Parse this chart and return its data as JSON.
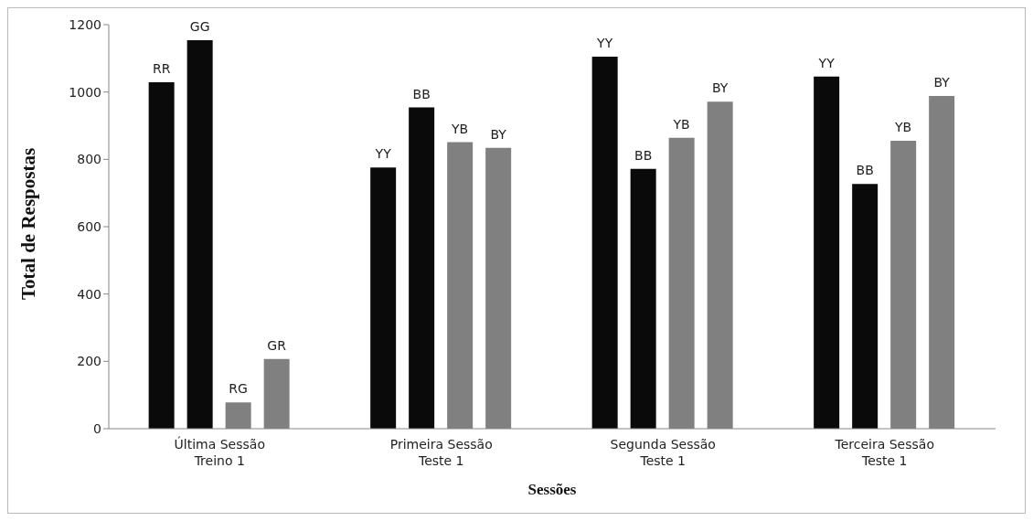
{
  "chart_data": {
    "type": "bar",
    "xlabel": "Sessões",
    "ylabel": "Total de Respostas",
    "categories": [
      "Última Sessão\nTreino 1",
      "Primeira Sessão\nTeste 1",
      "Segunda Sessão\nTeste 1",
      "Terceira Sessão\nTeste 1"
    ],
    "series": [
      {
        "color": "#0a0a0a",
        "values": [
          1029,
          776,
          1105,
          1046
        ],
        "value_labels": [
          "RR",
          "YY",
          "YY",
          "YY"
        ]
      },
      {
        "color": "#0a0a0a",
        "values": [
          1154,
          954,
          772,
          727
        ],
        "value_labels": [
          "GG",
          "BB",
          "BB",
          "BB"
        ]
      },
      {
        "color": "#808080",
        "values": [
          78,
          851,
          864,
          855
        ],
        "value_labels": [
          "RG",
          "YB",
          "YB",
          "YB"
        ]
      },
      {
        "color": "#808080",
        "values": [
          207,
          834,
          971,
          988
        ],
        "value_labels": [
          "GR",
          "BY",
          "BY",
          "BY"
        ]
      }
    ],
    "ylim": [
      0,
      1200
    ],
    "yticks": [
      0,
      200,
      400,
      600,
      800,
      1000,
      1200
    ],
    "grid": false,
    "legend": false
  }
}
